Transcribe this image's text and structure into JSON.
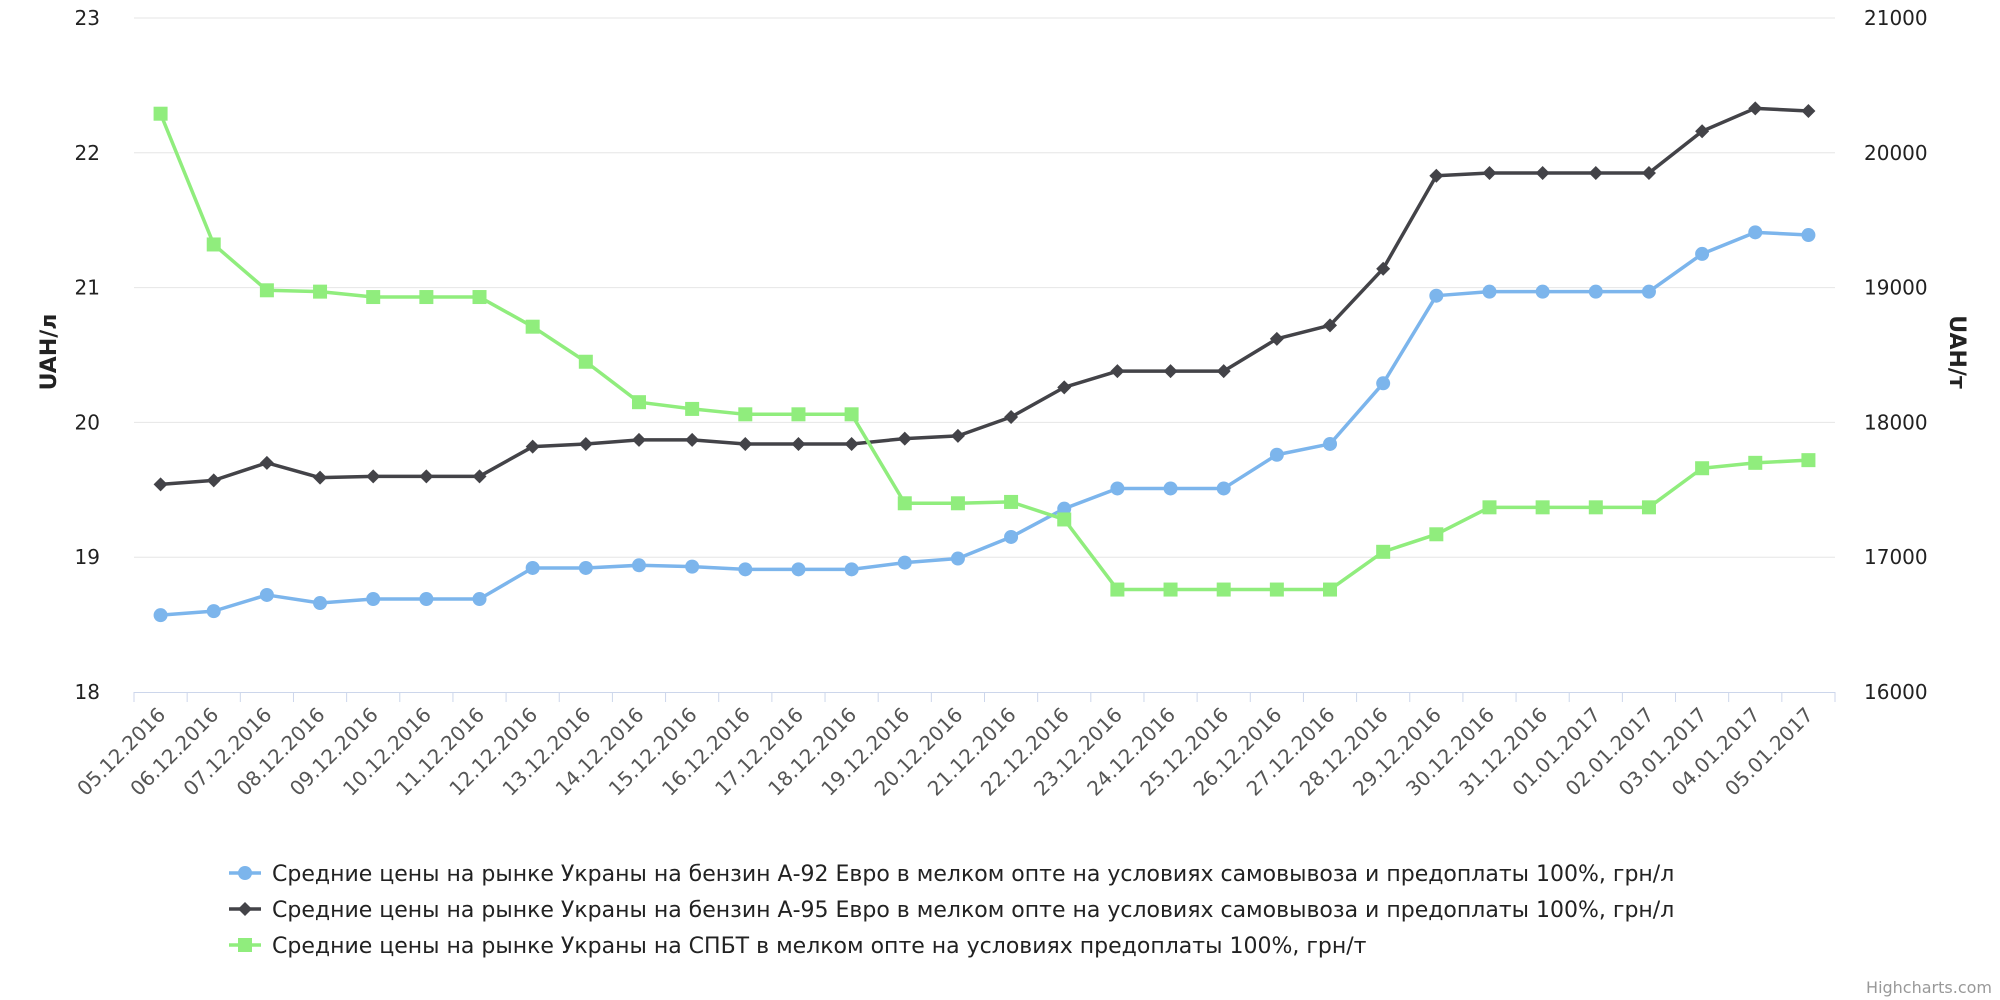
{
  "chart_data": {
    "type": "line",
    "title": "",
    "x": [
      "05.12.2016",
      "06.12.2016",
      "07.12.2016",
      "08.12.2016",
      "09.12.2016",
      "10.12.2016",
      "11.12.2016",
      "12.12.2016",
      "13.12.2016",
      "14.12.2016",
      "15.12.2016",
      "16.12.2016",
      "17.12.2016",
      "18.12.2016",
      "19.12.2016",
      "20.12.2016",
      "21.12.2016",
      "22.12.2016",
      "23.12.2016",
      "24.12.2016",
      "25.12.2016",
      "26.12.2016",
      "27.12.2016",
      "28.12.2016",
      "29.12.2016",
      "30.12.2016",
      "31.12.2016",
      "01.01.2017",
      "02.01.2017",
      "03.01.2017",
      "04.01.2017",
      "05.01.2017"
    ],
    "y_left": {
      "label": "UAH/л",
      "range": [
        18,
        23
      ],
      "ticks": [
        18,
        19,
        20,
        21,
        22,
        23
      ]
    },
    "y_right": {
      "label": "UAH/т",
      "range": [
        16000,
        21000
      ],
      "ticks": [
        16000,
        17000,
        18000,
        19000,
        20000,
        21000
      ]
    },
    "grid": true,
    "legend_position": "bottom",
    "series": [
      {
        "name": "Средние цены на рынке Украны на бензин А-92 Евро в мелком опте на условиях самовывоза и предоплаты 100%, грн/л",
        "axis": "left",
        "color": "#7cb5ec",
        "marker": "circle",
        "values": [
          18.57,
          18.6,
          18.72,
          18.66,
          18.69,
          18.69,
          18.69,
          18.92,
          18.92,
          18.94,
          18.93,
          18.91,
          18.91,
          18.91,
          18.96,
          18.99,
          19.15,
          19.36,
          19.51,
          19.51,
          19.51,
          19.76,
          19.84,
          20.29,
          20.94,
          20.97,
          20.97,
          20.97,
          20.97,
          21.25,
          21.41,
          21.39
        ]
      },
      {
        "name": "Средние цены на рынке Украны на бензин А-95 Евро в мелком опте на условиях самовывоза и предоплаты 100%, грн/л",
        "axis": "left",
        "color": "#434348",
        "marker": "diamond",
        "values": [
          19.54,
          19.57,
          19.7,
          19.59,
          19.6,
          19.6,
          19.6,
          19.82,
          19.84,
          19.87,
          19.87,
          19.84,
          19.84,
          19.84,
          19.88,
          19.9,
          20.04,
          20.26,
          20.38,
          20.38,
          20.38,
          20.62,
          20.72,
          21.14,
          21.83,
          21.85,
          21.85,
          21.85,
          21.85,
          22.16,
          22.33,
          22.31
        ]
      },
      {
        "name": "Средние цены на рынке Украны на СПБТ в мелком опте на условиях предоплаты 100%, грн/т",
        "axis": "right",
        "color": "#90ed7d",
        "marker": "square",
        "values": [
          20290,
          19320,
          18980,
          18970,
          18930,
          18930,
          18930,
          18710,
          18450,
          18150,
          18100,
          18060,
          18060,
          18060,
          17400,
          17400,
          17410,
          17280,
          16760,
          16760,
          16760,
          16760,
          16760,
          17040,
          17170,
          17370,
          17370,
          17370,
          17370,
          17660,
          17700,
          17720
        ]
      }
    ]
  },
  "credits": "Highcharts.com"
}
